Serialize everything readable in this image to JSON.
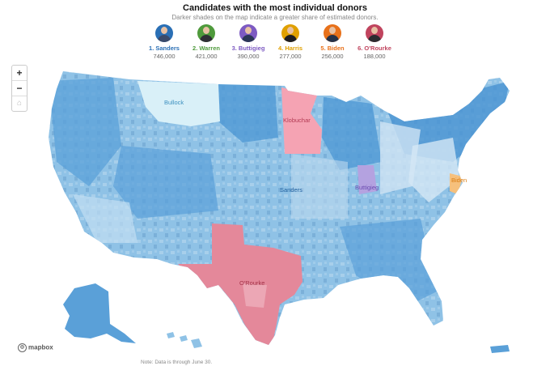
{
  "title": "Candidates with the most individual donors",
  "subtitle": "Darker shades on the map indicate a greater share of estimated donors.",
  "candidates": [
    {
      "label": "1. Sanders",
      "value": "746,000",
      "color": "#2a6fb5",
      "shirt": "#3a4a6a"
    },
    {
      "label": "2. Warren",
      "value": "421,000",
      "color": "#4f9a3c",
      "shirt": "#2f2f35"
    },
    {
      "label": "3. Buttigieg",
      "value": "390,000",
      "color": "#7d5ac2",
      "shirt": "#2b3656"
    },
    {
      "label": "4. Harris",
      "value": "277,000",
      "color": "#e0a000",
      "shirt": "#1d1d22"
    },
    {
      "label": "5. Biden",
      "value": "256,000",
      "color": "#e8711a",
      "shirt": "#263248"
    },
    {
      "label": "6. O'Rourke",
      "value": "188,000",
      "color": "#c0445e",
      "shirt": "#2c2c30"
    }
  ],
  "map_labels": {
    "bullock": "Bullock",
    "klobuchar": "Klobuchar",
    "sanders": "Sanders",
    "buttigieg": "Buttigieg",
    "biden": "Biden",
    "orourke": "O'Rourke"
  },
  "controls": {
    "zoom_in": "+",
    "zoom_out": "−",
    "home": "⌂"
  },
  "attribution": "mapbox",
  "note": "Note: Data is through June 30."
}
